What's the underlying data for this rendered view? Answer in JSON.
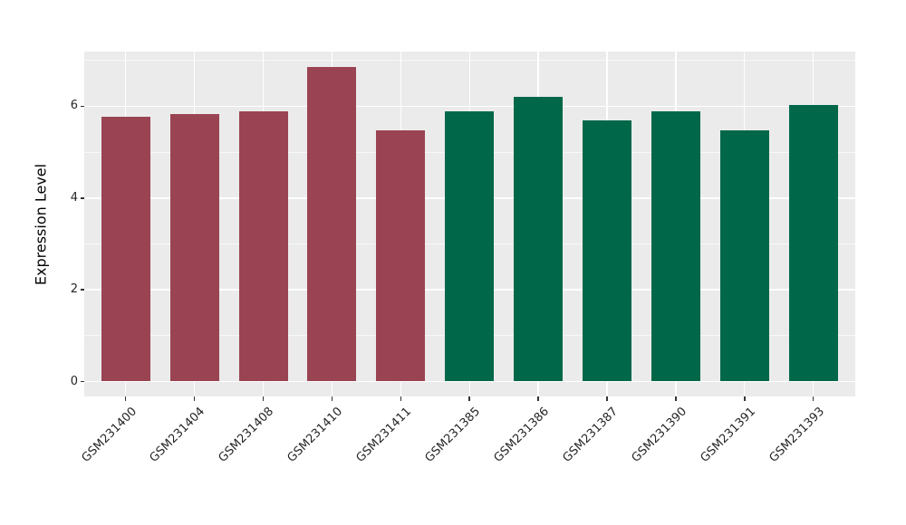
{
  "figure": {
    "background": "#FFFFFF",
    "panel_background": "#EBEBEB",
    "grid_color": "#FFFFFF",
    "tick_color": "#333333",
    "tick_label_color": "#262626"
  },
  "chart_data": {
    "type": "bar",
    "title": "",
    "xlabel": "",
    "ylabel": "Expression Level",
    "categories": [
      "GSM231400",
      "GSM231404",
      "GSM231408",
      "GSM231410",
      "GSM231411",
      "GSM231385",
      "GSM231386",
      "GSM231387",
      "GSM231390",
      "GSM231391",
      "GSM231393"
    ],
    "values": [
      5.78,
      5.83,
      5.9,
      6.85,
      5.47,
      5.9,
      6.2,
      5.7,
      5.9,
      5.48,
      6.02
    ],
    "bar_colors": [
      "#9A4453",
      "#9A4453",
      "#9A4453",
      "#9A4453",
      "#9A4453",
      "#006849",
      "#006849",
      "#006849",
      "#006849",
      "#006849",
      "#006849"
    ],
    "group_colors": {
      "left_group": "#9A4453",
      "right_group": "#006849"
    },
    "yticks": [
      0,
      2,
      4,
      6
    ],
    "minor_gridlines": [
      1,
      3,
      5,
      7
    ],
    "ylim": [
      -0.32,
      7.19
    ],
    "grid": true,
    "legend": false
  }
}
